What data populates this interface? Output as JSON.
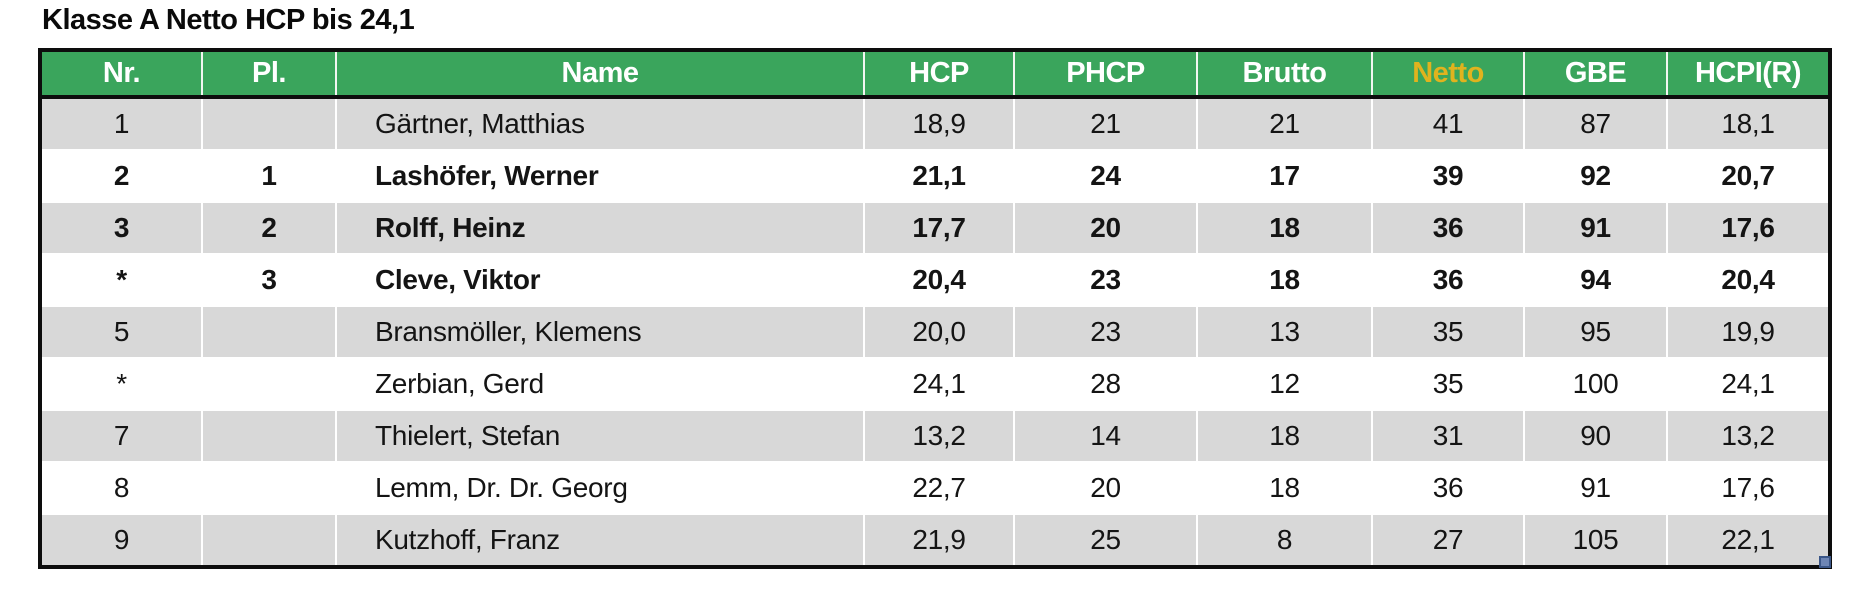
{
  "title": "Klasse A Netto HCP bis 24,1",
  "colors": {
    "header_bg": "#3aa55c",
    "header_text": "#ffffff",
    "netto_header_text": "#e0b31e",
    "row_gray": "#d8d8d8",
    "row_white": "#ffffff",
    "outer_border": "#0d0d0d",
    "gridline": "#ffffff",
    "fill_handle": "#6d85b4"
  },
  "table": {
    "columns": [
      {
        "key": "nr",
        "label": "Nr.",
        "highlight": false
      },
      {
        "key": "pl",
        "label": "Pl.",
        "highlight": false
      },
      {
        "key": "name",
        "label": "Name",
        "highlight": false
      },
      {
        "key": "hcp",
        "label": "HCP",
        "highlight": false
      },
      {
        "key": "phcp",
        "label": "PHCP",
        "highlight": false
      },
      {
        "key": "brutto",
        "label": "Brutto",
        "highlight": false
      },
      {
        "key": "netto",
        "label": "Netto",
        "highlight": true
      },
      {
        "key": "gbe",
        "label": "GBE",
        "highlight": false
      },
      {
        "key": "hcpi",
        "label": "HCPI(R)",
        "highlight": false
      }
    ],
    "rows": [
      {
        "nr": "1",
        "pl": "",
        "name": "Gärtner, Matthias",
        "hcp": "18,9",
        "phcp": "21",
        "brutto": "21",
        "netto": "41",
        "gbe": "87",
        "hcpi": "18,1",
        "bold": false
      },
      {
        "nr": "2",
        "pl": "1",
        "name": "Lashöfer, Werner",
        "hcp": "21,1",
        "phcp": "24",
        "brutto": "17",
        "netto": "39",
        "gbe": "92",
        "hcpi": "20,7",
        "bold": true
      },
      {
        "nr": "3",
        "pl": "2",
        "name": "Rolff, Heinz",
        "hcp": "17,7",
        "phcp": "20",
        "brutto": "18",
        "netto": "36",
        "gbe": "91",
        "hcpi": "17,6",
        "bold": true
      },
      {
        "nr": "*",
        "pl": "3",
        "name": "Cleve, Viktor",
        "hcp": "20,4",
        "phcp": "23",
        "brutto": "18",
        "netto": "36",
        "gbe": "94",
        "hcpi": "20,4",
        "bold": true
      },
      {
        "nr": "5",
        "pl": "",
        "name": "Bransmöller, Klemens",
        "hcp": "20,0",
        "phcp": "23",
        "brutto": "13",
        "netto": "35",
        "gbe": "95",
        "hcpi": "19,9",
        "bold": false
      },
      {
        "nr": "*",
        "pl": "",
        "name": "Zerbian, Gerd",
        "hcp": "24,1",
        "phcp": "28",
        "brutto": "12",
        "netto": "35",
        "gbe": "100",
        "hcpi": "24,1",
        "bold": false
      },
      {
        "nr": "7",
        "pl": "",
        "name": "Thielert, Stefan",
        "hcp": "13,2",
        "phcp": "14",
        "brutto": "18",
        "netto": "31",
        "gbe": "90",
        "hcpi": "13,2",
        "bold": false
      },
      {
        "nr": "8",
        "pl": "",
        "name": "Lemm, Dr. Dr. Georg",
        "hcp": "22,7",
        "phcp": "20",
        "brutto": "18",
        "netto": "36",
        "gbe": "91",
        "hcpi": "17,6",
        "bold": false
      },
      {
        "nr": "9",
        "pl": "",
        "name": "Kutzhoff, Franz",
        "hcp": "21,9",
        "phcp": "25",
        "brutto": "8",
        "netto": "27",
        "gbe": "105",
        "hcpi": "22,1",
        "bold": false
      }
    ]
  }
}
